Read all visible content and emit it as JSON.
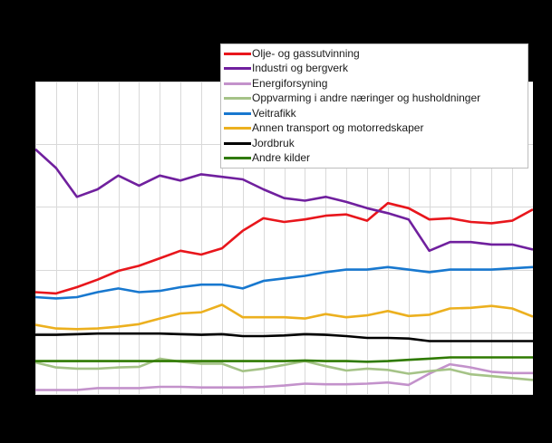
{
  "figure": {
    "background_color": "#000000",
    "plot_background_color": "#ffffff",
    "gridline_color": "#d9d9d9",
    "legend_border_color": "#bdbdbd"
  },
  "chart_data": {
    "type": "line",
    "title": "",
    "xlabel": "",
    "ylabel": "",
    "grid": true,
    "legend_position": "top-right",
    "axis_tick_labels_visible": false,
    "estimation_note": "No axis tick labels are visible in the image. Y values estimated from unlabeled gridlines assuming ylim 0-25 with gridline step 5; x assumed to be 25 yearly points (1990-2014) matching the 24 vertical grid intervals.",
    "ylim": [
      0,
      25
    ],
    "y_gridline_step": 5,
    "x": [
      1990,
      1991,
      1992,
      1993,
      1994,
      1995,
      1996,
      1997,
      1998,
      1999,
      2000,
      2001,
      2002,
      2003,
      2004,
      2005,
      2006,
      2007,
      2008,
      2009,
      2010,
      2011,
      2012,
      2013,
      2014
    ],
    "series": [
      {
        "name": "Olje- og gassutvinning",
        "color": "#e8161c",
        "values": [
          8.2,
          8.1,
          8.6,
          9.2,
          9.9,
          10.3,
          10.9,
          11.5,
          11.2,
          11.7,
          13.1,
          14.1,
          13.8,
          14.0,
          14.3,
          14.4,
          13.9,
          15.3,
          14.9,
          14.0,
          14.1,
          13.8,
          13.7,
          13.9,
          14.8
        ]
      },
      {
        "name": "Industri og bergverk",
        "color": "#70209e",
        "values": [
          19.6,
          18.1,
          15.8,
          16.4,
          17.5,
          16.7,
          17.5,
          17.1,
          17.6,
          17.4,
          17.2,
          16.4,
          15.7,
          15.5,
          15.8,
          15.4,
          14.9,
          14.5,
          14.0,
          11.5,
          12.2,
          12.2,
          12.0,
          12.0,
          11.6
        ]
      },
      {
        "name": "Energiforsyning",
        "color": "#c392cb",
        "values": [
          0.4,
          0.4,
          0.4,
          0.55,
          0.55,
          0.55,
          0.65,
          0.65,
          0.6,
          0.6,
          0.6,
          0.65,
          0.75,
          0.9,
          0.85,
          0.85,
          0.9,
          1.0,
          0.8,
          1.7,
          2.45,
          2.2,
          1.85,
          1.75,
          1.75
        ]
      },
      {
        "name": "Oppvarming i andre næringer og husholdninger",
        "color": "#a5c387",
        "values": [
          2.6,
          2.2,
          2.1,
          2.1,
          2.2,
          2.25,
          2.9,
          2.65,
          2.5,
          2.5,
          1.9,
          2.1,
          2.4,
          2.7,
          2.3,
          1.95,
          2.1,
          2.0,
          1.7,
          1.9,
          2.05,
          1.65,
          1.5,
          1.35,
          1.2
        ]
      },
      {
        "name": "Veitrafikk",
        "color": "#1878cf",
        "values": [
          7.8,
          7.7,
          7.8,
          8.2,
          8.5,
          8.2,
          8.3,
          8.6,
          8.8,
          8.8,
          8.5,
          9.1,
          9.3,
          9.5,
          9.8,
          10.0,
          10.0,
          10.2,
          10.0,
          9.8,
          10.0,
          10.0,
          10.0,
          10.1,
          10.2
        ]
      },
      {
        "name": "Annen transport og motorredskaper",
        "color": "#ecb01f",
        "values": [
          5.6,
          5.3,
          5.25,
          5.3,
          5.45,
          5.65,
          6.1,
          6.5,
          6.6,
          7.2,
          6.2,
          6.2,
          6.2,
          6.1,
          6.45,
          6.2,
          6.35,
          6.7,
          6.3,
          6.4,
          6.9,
          6.95,
          7.1,
          6.9,
          6.25
        ]
      },
      {
        "name": "Jordbruk",
        "color": "#000000",
        "values": [
          4.8,
          4.8,
          4.85,
          4.9,
          4.9,
          4.9,
          4.9,
          4.85,
          4.8,
          4.85,
          4.7,
          4.7,
          4.75,
          4.85,
          4.8,
          4.7,
          4.55,
          4.55,
          4.5,
          4.3,
          4.3,
          4.3,
          4.3,
          4.3,
          4.3
        ]
      },
      {
        "name": "Andre kilder",
        "color": "#2f7a00",
        "values": [
          2.7,
          2.7,
          2.7,
          2.7,
          2.7,
          2.7,
          2.7,
          2.7,
          2.7,
          2.7,
          2.7,
          2.7,
          2.7,
          2.75,
          2.7,
          2.7,
          2.65,
          2.7,
          2.8,
          2.9,
          3.0,
          3.0,
          3.0,
          3.0,
          3.0
        ]
      }
    ]
  }
}
